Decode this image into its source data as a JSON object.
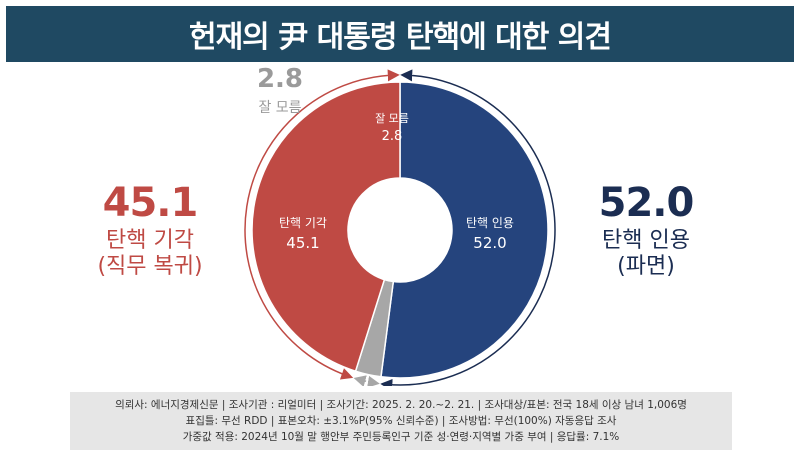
{
  "title": "헌재의 尹 대통령 탄핵에 대한 의견",
  "colors": {
    "title_bg": "#1f4962",
    "oppose": "#bf4a44",
    "support": "#25447d",
    "dont_know": "#a7a7a7",
    "support_text": "#1b2d52"
  },
  "chart_data": {
    "type": "pie",
    "donut": true,
    "title": "헌재의 尹 대통령 탄핵에 대한 의견",
    "slices": [
      {
        "label": "탄핵 인용",
        "value": 52.0
      },
      {
        "label": "잘 모름",
        "value": 2.8
      },
      {
        "label": "탄핵 기각",
        "value": 45.1
      }
    ]
  },
  "labels": {
    "inner_support_name": "탄핵 인용",
    "inner_support_value": "52.0",
    "inner_oppose_name": "탄핵 기각",
    "inner_oppose_value": "45.1",
    "inner_dk_name": "잘 모름",
    "inner_dk_value": "2.8",
    "left_value": "45.1",
    "left_line1": "탄핵 기각",
    "left_line2": "(직무 복귀)",
    "right_value": "52.0",
    "right_line1": "탄핵 인용",
    "right_line2": "(파면)",
    "dk_value": "2.8",
    "dk_label": "잘 모름"
  },
  "footer": {
    "line1": "의뢰사: 에너지경제신문 | 조사기관 : 리얼미터 | 조사기간: 2025. 2. 20.~2. 21. | 조사대상/표본: 전국 18세 이상 남녀 1,006명",
    "line2": "표집틀: 무선 RDD | 표본오차: ±3.1%P(95% 신뢰수준) | 조사방법: 무선(100%) 자동응답 조사",
    "line3": "가중값 적용: 2024년 10월 말 행안부 주민등록인구 기준 성·연령·지역별 가중 부여 | 응답률: 7.1%"
  }
}
